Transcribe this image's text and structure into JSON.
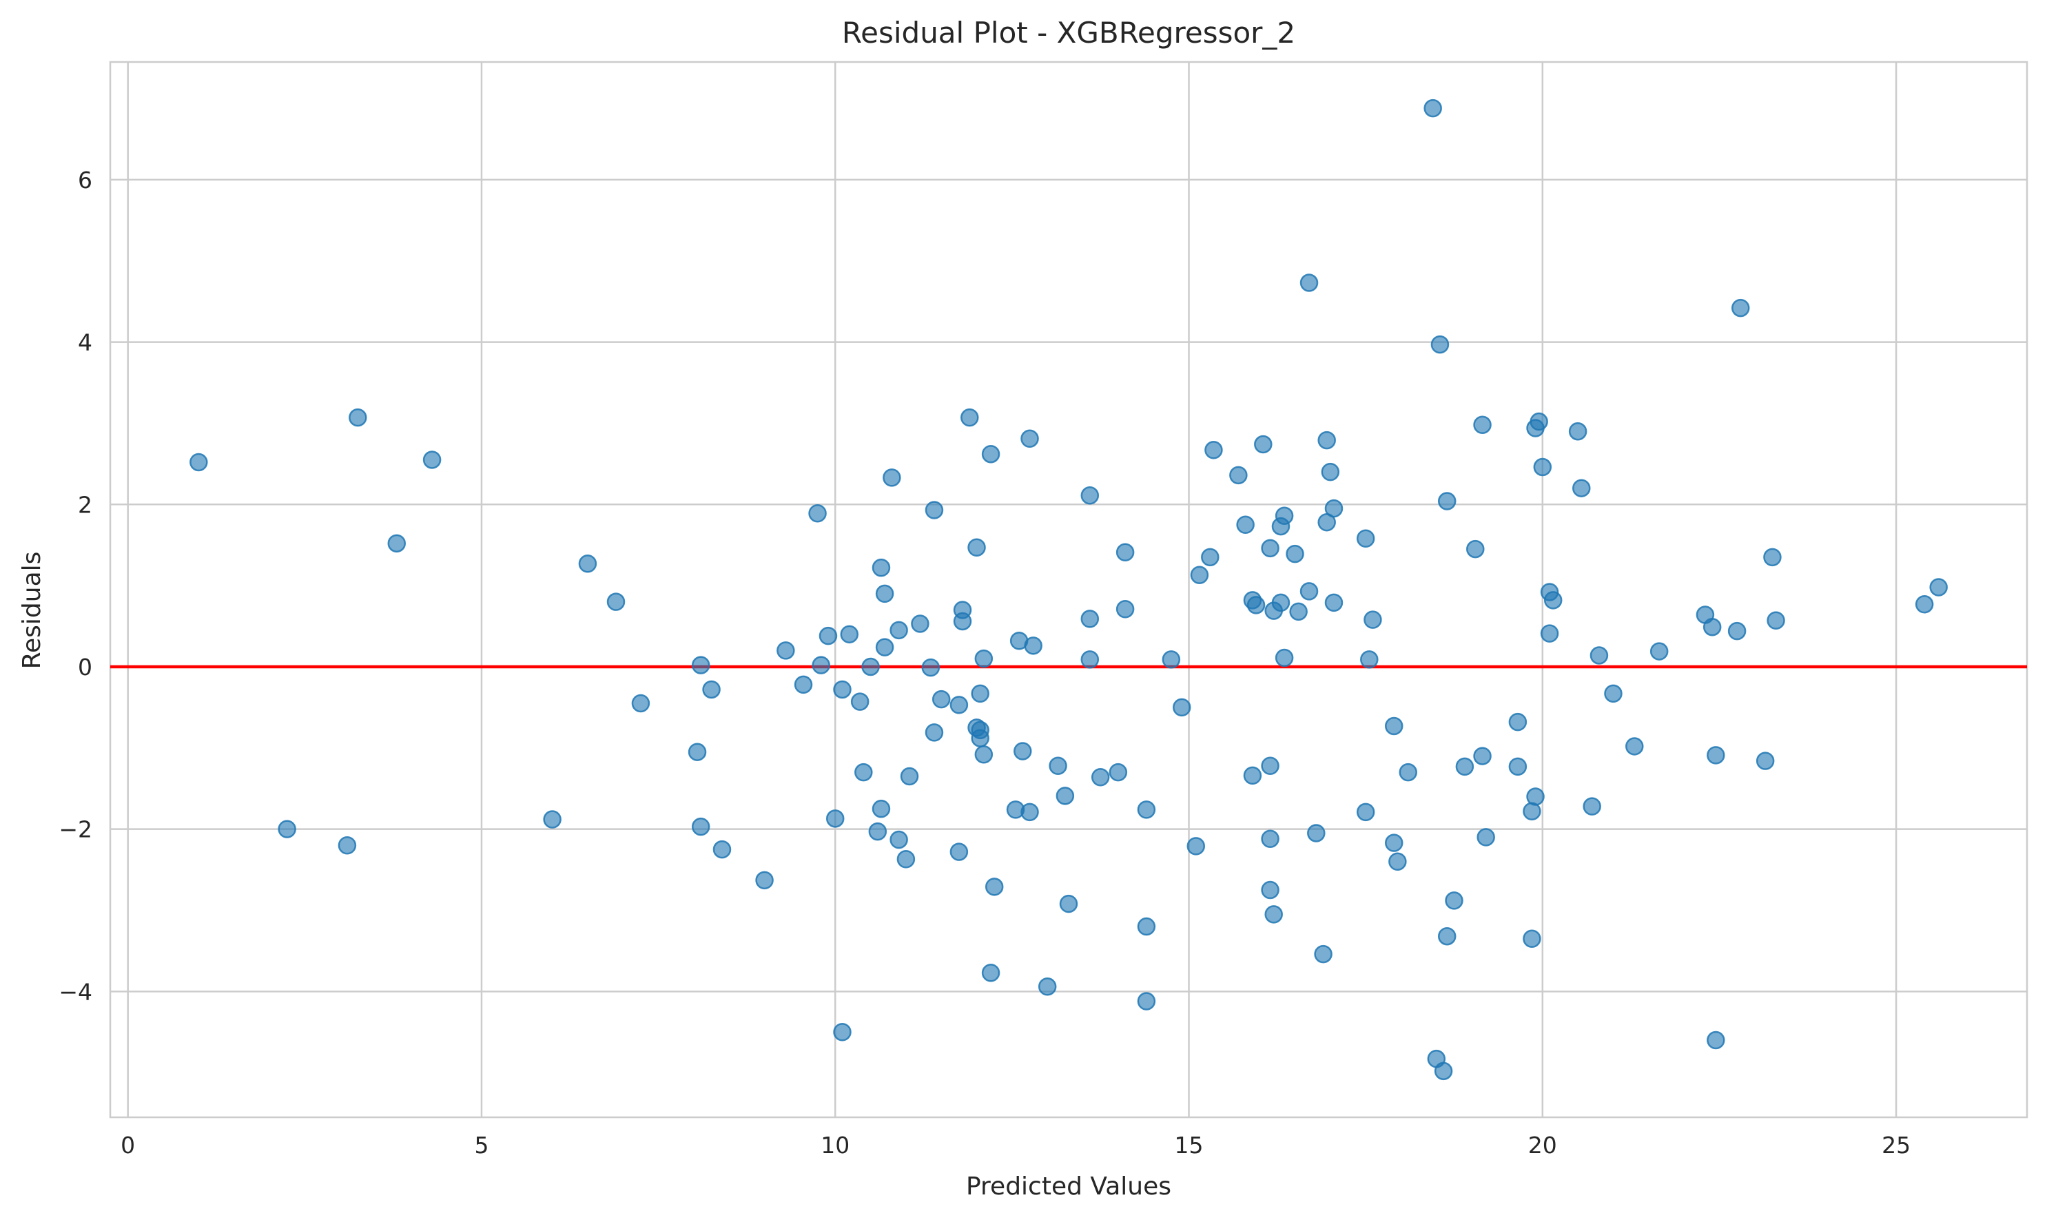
{
  "chart_data": {
    "type": "scatter",
    "title": "Residual Plot - XGBRegressor_2",
    "xlabel": "Predicted Values",
    "ylabel": "Residuals",
    "xlim": [
      -0.25,
      26.85
    ],
    "ylim": [
      -5.55,
      7.45
    ],
    "xticks": [
      0,
      5,
      10,
      15,
      20,
      25
    ],
    "xtick_labels": [
      "0",
      "5",
      "10",
      "15",
      "20",
      "25"
    ],
    "yticks": [
      -4,
      -2,
      0,
      2,
      4,
      6
    ],
    "ytick_labels": [
      "−4",
      "−2",
      "0",
      "2",
      "4",
      "6"
    ],
    "grid": true,
    "point_color": "#1f77b4",
    "reference_line": {
      "y": 0,
      "color": "#ff0000"
    },
    "points": [
      {
        "x": 1.0,
        "y": 2.52
      },
      {
        "x": 3.25,
        "y": 3.07
      },
      {
        "x": 4.3,
        "y": 2.55
      },
      {
        "x": 3.8,
        "y": 1.52
      },
      {
        "x": 2.25,
        "y": -2.0
      },
      {
        "x": 3.1,
        "y": -2.2
      },
      {
        "x": 6.5,
        "y": 1.27
      },
      {
        "x": 6.9,
        "y": 0.8
      },
      {
        "x": 6.0,
        "y": -1.88
      },
      {
        "x": 7.25,
        "y": -0.45
      },
      {
        "x": 8.1,
        "y": 0.02
      },
      {
        "x": 8.25,
        "y": -0.28
      },
      {
        "x": 8.05,
        "y": -1.05
      },
      {
        "x": 8.1,
        "y": -1.97
      },
      {
        "x": 8.4,
        "y": -2.25
      },
      {
        "x": 9.0,
        "y": -2.63
      },
      {
        "x": 9.3,
        "y": 0.2
      },
      {
        "x": 9.55,
        "y": -0.22
      },
      {
        "x": 9.75,
        "y": 1.89
      },
      {
        "x": 9.8,
        "y": 0.02
      },
      {
        "x": 9.9,
        "y": 0.38
      },
      {
        "x": 10.0,
        "y": -1.87
      },
      {
        "x": 10.1,
        "y": -0.28
      },
      {
        "x": 10.2,
        "y": 0.4
      },
      {
        "x": 10.35,
        "y": -0.43
      },
      {
        "x": 10.4,
        "y": -1.3
      },
      {
        "x": 10.1,
        "y": -4.5
      },
      {
        "x": 10.5,
        "y": 0.0
      },
      {
        "x": 10.65,
        "y": 1.22
      },
      {
        "x": 10.7,
        "y": 0.9
      },
      {
        "x": 10.7,
        "y": 0.24
      },
      {
        "x": 10.8,
        "y": 2.33
      },
      {
        "x": 10.9,
        "y": 0.45
      },
      {
        "x": 10.65,
        "y": -1.75
      },
      {
        "x": 10.6,
        "y": -2.03
      },
      {
        "x": 10.9,
        "y": -2.13
      },
      {
        "x": 11.0,
        "y": -2.37
      },
      {
        "x": 11.05,
        "y": -1.35
      },
      {
        "x": 11.2,
        "y": 0.53
      },
      {
        "x": 11.35,
        "y": -0.01
      },
      {
        "x": 11.4,
        "y": 1.93
      },
      {
        "x": 11.4,
        "y": -0.81
      },
      {
        "x": 11.5,
        "y": -0.4
      },
      {
        "x": 11.75,
        "y": -0.47
      },
      {
        "x": 11.8,
        "y": 0.7
      },
      {
        "x": 11.8,
        "y": 0.56
      },
      {
        "x": 11.75,
        "y": -2.28
      },
      {
        "x": 11.9,
        "y": 3.07
      },
      {
        "x": 12.0,
        "y": 1.47
      },
      {
        "x": 12.0,
        "y": -0.75
      },
      {
        "x": 12.05,
        "y": -0.78
      },
      {
        "x": 12.05,
        "y": -0.33
      },
      {
        "x": 12.05,
        "y": -0.88
      },
      {
        "x": 12.1,
        "y": -1.08
      },
      {
        "x": 12.1,
        "y": 0.1
      },
      {
        "x": 12.2,
        "y": 2.62
      },
      {
        "x": 12.25,
        "y": -2.71
      },
      {
        "x": 12.2,
        "y": -3.77
      },
      {
        "x": 12.55,
        "y": -1.76
      },
      {
        "x": 12.6,
        "y": 0.32
      },
      {
        "x": 12.65,
        "y": -1.04
      },
      {
        "x": 12.75,
        "y": 2.81
      },
      {
        "x": 12.8,
        "y": 0.26
      },
      {
        "x": 12.75,
        "y": -1.79
      },
      {
        "x": 13.0,
        "y": -3.94
      },
      {
        "x": 13.15,
        "y": -1.22
      },
      {
        "x": 13.3,
        "y": -2.92
      },
      {
        "x": 13.25,
        "y": -1.59
      },
      {
        "x": 13.6,
        "y": 2.11
      },
      {
        "x": 13.6,
        "y": 0.59
      },
      {
        "x": 13.6,
        "y": 0.09
      },
      {
        "x": 13.75,
        "y": -1.36
      },
      {
        "x": 14.0,
        "y": -1.3
      },
      {
        "x": 14.1,
        "y": 1.41
      },
      {
        "x": 14.1,
        "y": 0.71
      },
      {
        "x": 14.4,
        "y": -1.76
      },
      {
        "x": 14.4,
        "y": -3.2
      },
      {
        "x": 14.4,
        "y": -4.12
      },
      {
        "x": 14.75,
        "y": 0.09
      },
      {
        "x": 14.9,
        "y": -0.5
      },
      {
        "x": 15.1,
        "y": -2.21
      },
      {
        "x": 15.15,
        "y": 1.13
      },
      {
        "x": 15.3,
        "y": 1.35
      },
      {
        "x": 15.35,
        "y": 2.67
      },
      {
        "x": 15.7,
        "y": 2.36
      },
      {
        "x": 15.8,
        "y": 1.75
      },
      {
        "x": 15.9,
        "y": 0.82
      },
      {
        "x": 15.95,
        "y": 0.76
      },
      {
        "x": 15.9,
        "y": -1.34
      },
      {
        "x": 16.05,
        "y": 2.74
      },
      {
        "x": 16.15,
        "y": 1.46
      },
      {
        "x": 16.2,
        "y": 0.69
      },
      {
        "x": 16.15,
        "y": -1.22
      },
      {
        "x": 16.15,
        "y": -2.12
      },
      {
        "x": 16.15,
        "y": -2.75
      },
      {
        "x": 16.2,
        "y": -3.05
      },
      {
        "x": 16.3,
        "y": 1.73
      },
      {
        "x": 16.35,
        "y": 1.86
      },
      {
        "x": 16.3,
        "y": 0.79
      },
      {
        "x": 16.35,
        "y": 0.11
      },
      {
        "x": 16.5,
        "y": 1.39
      },
      {
        "x": 16.55,
        "y": 0.68
      },
      {
        "x": 16.7,
        "y": 4.73
      },
      {
        "x": 16.7,
        "y": 0.93
      },
      {
        "x": 16.8,
        "y": -2.05
      },
      {
        "x": 16.9,
        "y": -3.54
      },
      {
        "x": 16.95,
        "y": 2.79
      },
      {
        "x": 16.95,
        "y": 1.78
      },
      {
        "x": 17.0,
        "y": 2.4
      },
      {
        "x": 17.05,
        "y": 1.95
      },
      {
        "x": 17.05,
        "y": 0.79
      },
      {
        "x": 17.5,
        "y": 1.58
      },
      {
        "x": 17.55,
        "y": 0.09
      },
      {
        "x": 17.6,
        "y": 0.58
      },
      {
        "x": 17.5,
        "y": -1.79
      },
      {
        "x": 17.9,
        "y": -0.73
      },
      {
        "x": 17.9,
        "y": -2.17
      },
      {
        "x": 17.95,
        "y": -2.4
      },
      {
        "x": 18.1,
        "y": -1.3
      },
      {
        "x": 18.45,
        "y": 6.88
      },
      {
        "x": 18.55,
        "y": 3.97
      },
      {
        "x": 18.65,
        "y": 2.04
      },
      {
        "x": 18.65,
        "y": -3.32
      },
      {
        "x": 18.75,
        "y": -2.88
      },
      {
        "x": 18.5,
        "y": -4.83
      },
      {
        "x": 18.6,
        "y": -4.98
      },
      {
        "x": 18.9,
        "y": -1.23
      },
      {
        "x": 19.05,
        "y": 1.45
      },
      {
        "x": 19.15,
        "y": 2.98
      },
      {
        "x": 19.15,
        "y": -1.1
      },
      {
        "x": 19.2,
        "y": -2.1
      },
      {
        "x": 19.65,
        "y": -0.68
      },
      {
        "x": 19.65,
        "y": -1.23
      },
      {
        "x": 19.85,
        "y": -1.78
      },
      {
        "x": 19.85,
        "y": -3.35
      },
      {
        "x": 19.9,
        "y": -1.6
      },
      {
        "x": 19.9,
        "y": 2.94
      },
      {
        "x": 19.95,
        "y": 3.02
      },
      {
        "x": 20.0,
        "y": 2.46
      },
      {
        "x": 20.1,
        "y": 0.92
      },
      {
        "x": 20.15,
        "y": 0.82
      },
      {
        "x": 20.1,
        "y": 0.41
      },
      {
        "x": 20.5,
        "y": 2.9
      },
      {
        "x": 20.55,
        "y": 2.2
      },
      {
        "x": 20.7,
        "y": -1.72
      },
      {
        "x": 20.8,
        "y": 0.14
      },
      {
        "x": 21.0,
        "y": -0.33
      },
      {
        "x": 21.3,
        "y": -0.98
      },
      {
        "x": 21.65,
        "y": 0.19
      },
      {
        "x": 22.3,
        "y": 0.64
      },
      {
        "x": 22.4,
        "y": 0.49
      },
      {
        "x": 22.45,
        "y": -1.09
      },
      {
        "x": 22.45,
        "y": -4.6
      },
      {
        "x": 22.75,
        "y": 0.44
      },
      {
        "x": 22.8,
        "y": 4.42
      },
      {
        "x": 23.15,
        "y": -1.16
      },
      {
        "x": 23.25,
        "y": 1.35
      },
      {
        "x": 23.3,
        "y": 0.57
      },
      {
        "x": 25.4,
        "y": 0.77
      },
      {
        "x": 25.6,
        "y": 0.98
      }
    ]
  }
}
